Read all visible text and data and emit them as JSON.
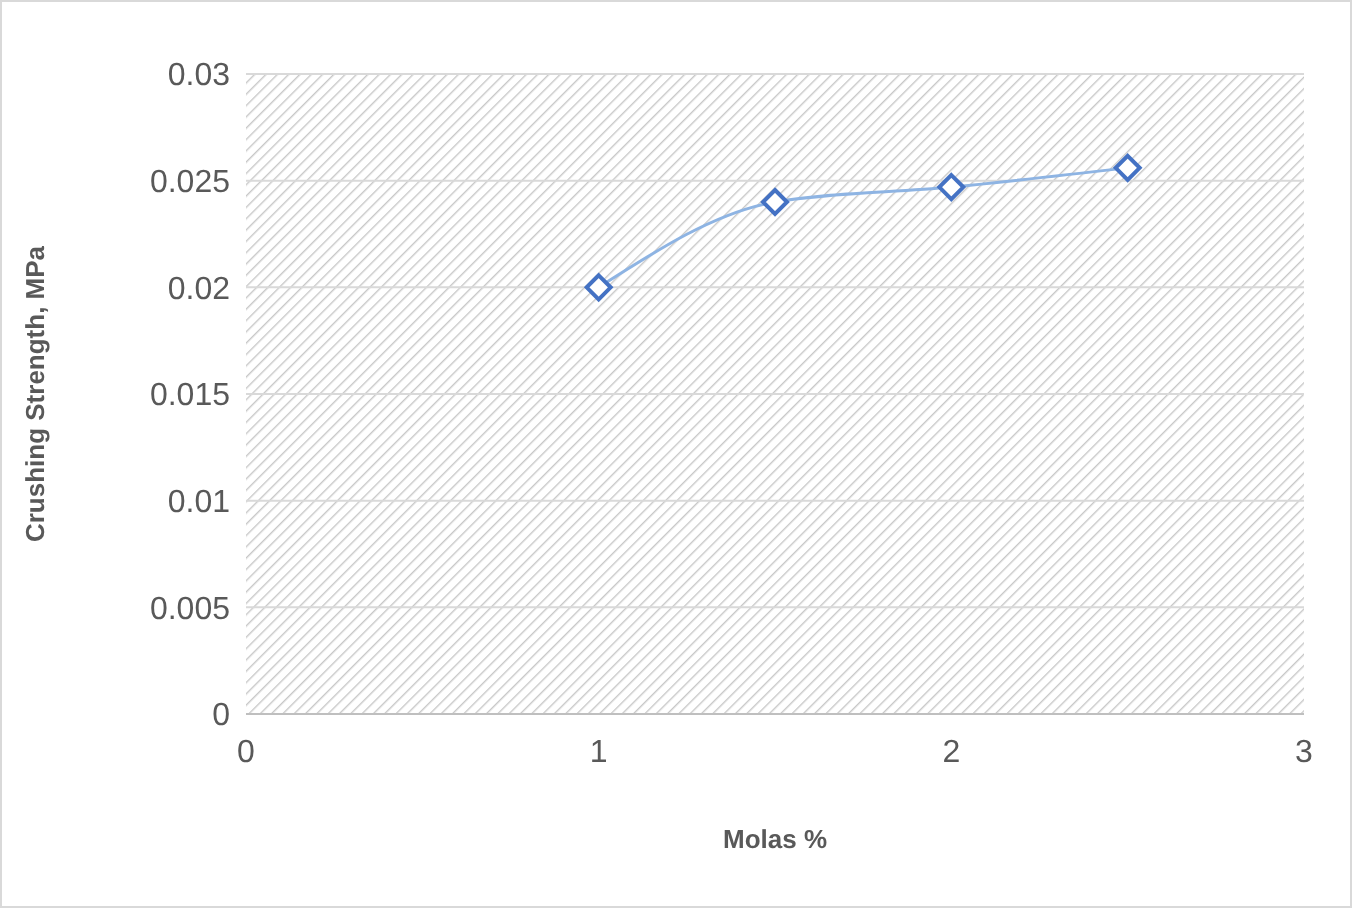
{
  "chart_data": {
    "type": "line",
    "xlabel": "Molas %",
    "ylabel": "Crushing Strength, MPa",
    "x": [
      1,
      1.5,
      2,
      2.5
    ],
    "series": [
      {
        "color": "#4472c4",
        "values": [
          0.02,
          0.024,
          0.0247,
          0.0256
        ]
      }
    ],
    "xlim": [
      0,
      3
    ],
    "xticks": [
      0,
      1,
      2,
      3
    ],
    "ylim": [
      0,
      0.03
    ],
    "yticks": [
      0,
      0.005,
      0.01,
      0.015,
      0.02,
      0.025,
      0.03
    ],
    "grid": "y",
    "marker": "diamond",
    "line_style": "solid"
  }
}
